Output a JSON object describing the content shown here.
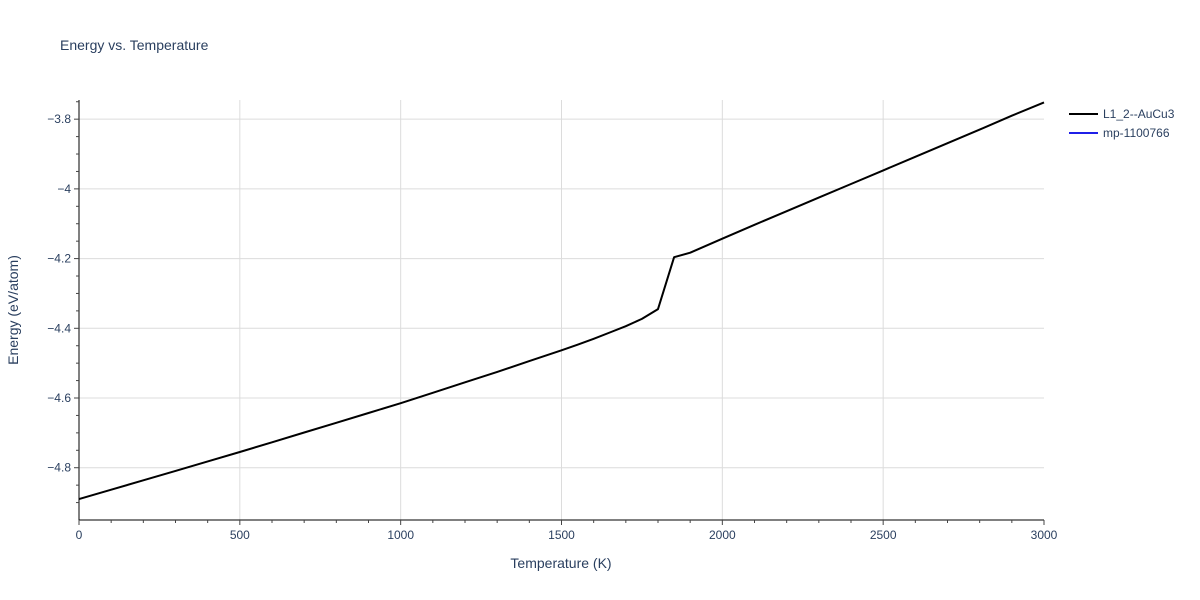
{
  "chart_data": {
    "type": "line",
    "title": "Energy vs. Temperature",
    "xlabel": "Temperature (K)",
    "ylabel": "Energy (eV/atom)",
    "xlim": [
      0,
      3000
    ],
    "ylim": [
      -4.95,
      -3.745
    ],
    "x_ticks": [
      0,
      500,
      1000,
      1500,
      2000,
      2500,
      3000
    ],
    "x_tick_labels": [
      "0",
      "500",
      "1000",
      "1500",
      "2000",
      "2500",
      "3000"
    ],
    "y_ticks": [
      -3.8,
      -4.0,
      -4.2,
      -4.4,
      -4.6,
      -4.8
    ],
    "y_tick_labels": [
      "−3.8",
      "−4",
      "−4.2",
      "−4.4",
      "−4.6",
      "−4.8"
    ],
    "grid": true,
    "legend_position": "top-right",
    "series": [
      {
        "name": "L1_2--AuCu3",
        "color": "#000000",
        "x": [
          0,
          100,
          200,
          300,
          400,
          500,
          600,
          700,
          800,
          900,
          1000,
          1100,
          1200,
          1300,
          1400,
          1500,
          1550,
          1600,
          1650,
          1700,
          1750,
          1800,
          1850,
          1900,
          2000,
          2100,
          2200,
          2300,
          2400,
          2500,
          2600,
          2700,
          2800,
          2900,
          3000
        ],
        "y": [
          -4.89,
          -4.863,
          -4.836,
          -4.809,
          -4.782,
          -4.755,
          -4.727,
          -4.699,
          -4.671,
          -4.643,
          -4.615,
          -4.585,
          -4.555,
          -4.525,
          -4.494,
          -4.463,
          -4.447,
          -4.43,
          -4.412,
          -4.394,
          -4.373,
          -4.345,
          -4.196,
          -4.183,
          -4.143,
          -4.103,
          -4.064,
          -4.025,
          -3.986,
          -3.947,
          -3.908,
          -3.869,
          -3.83,
          -3.79,
          -3.752
        ]
      },
      {
        "name": "mp-1100766",
        "color": "#1f1fe8",
        "x": [],
        "y": []
      }
    ]
  }
}
